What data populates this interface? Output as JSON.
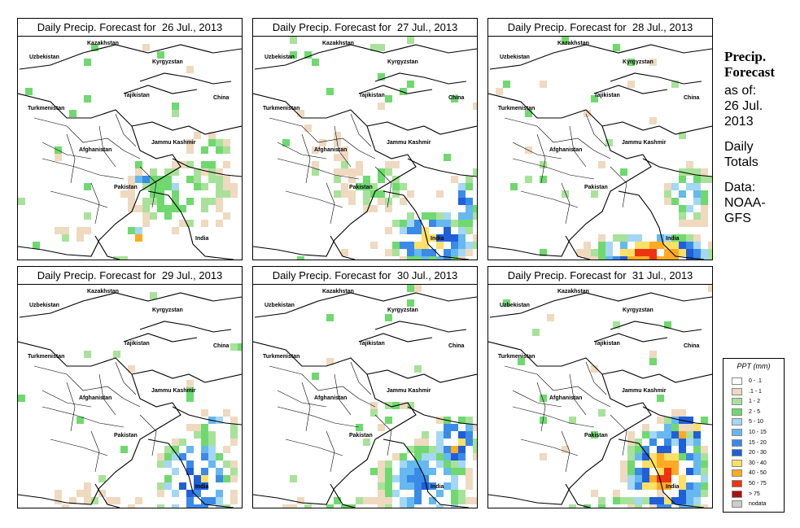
{
  "panels": [
    {
      "title": "Daily Precip. Forecast for  26 Jul., 2013"
    },
    {
      "title": "Daily Precip. Forecast for  27 Jul., 2013"
    },
    {
      "title": "Daily Precip. Forecast for  28 Jul., 2013"
    },
    {
      "title": "Daily Precip. Forecast for  29 Jul., 2013"
    },
    {
      "title": "Daily Precip. Forecast for  30 Jul., 2013"
    },
    {
      "title": "Daily Precip. Forecast for  31 Jul., 2013"
    }
  ],
  "map_labels": {
    "kazakhstan": "Kazakhstan",
    "uzbekistan": "Uzbekistan",
    "kyrgyzstan": "Kyrgyzstan",
    "tajikistan": "Tajikistan",
    "turkmenistan": "Turkmenistan",
    "china": "China",
    "afghanistan": "Afghanistan",
    "jammu_kashmir": "Jammu Kashmir",
    "pakistan": "Pakistan",
    "india": "India"
  },
  "side": {
    "title_line1": "Precip.",
    "title_line2": "Forecast",
    "asof": "as of:",
    "date_line1": "26 Jul.",
    "date_line2": "2013",
    "daily": "Daily",
    "totals": "Totals",
    "data_label": "Data:",
    "data_src1": "NOAA-",
    "data_src2": "GFS"
  },
  "legend": {
    "title": "PPT (mm)",
    "items": [
      {
        "label": "0 - .1",
        "color": "#ffffff"
      },
      {
        "label": ".1 - 1",
        "color": "#efd9bf"
      },
      {
        "label": "1 - 2",
        "color": "#a8e29a"
      },
      {
        "label": "2 - 5",
        "color": "#6fd96f"
      },
      {
        "label": "5 - 10",
        "color": "#a3d7f5"
      },
      {
        "label": "10 - 15",
        "color": "#66b8f0"
      },
      {
        "label": "15 - 20",
        "color": "#3a8ae8"
      },
      {
        "label": "20 - 30",
        "color": "#1f5fd9"
      },
      {
        "label": "30 - 40",
        "color": "#ffe066"
      },
      {
        "label": "40 - 50",
        "color": "#ffaa22"
      },
      {
        "label": "50 - 75",
        "color": "#ee3311"
      },
      {
        "label": "> 75",
        "color": "#aa1111"
      },
      {
        "label": "nodata",
        "color": "#cccccc"
      }
    ]
  }
}
